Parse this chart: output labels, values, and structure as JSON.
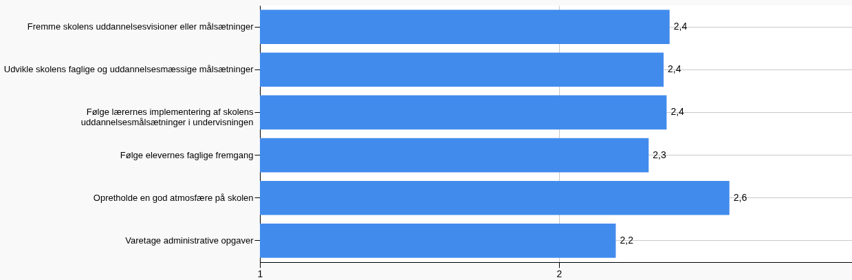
{
  "chart_data": {
    "type": "bar",
    "orientation": "horizontal",
    "categories": [
      "Fremme skolens uddannelsesvisioner eller målsætninger",
      "Udvikle skolens faglige og uddannelsesmæssige målsætninger",
      "Følge lærernes implementering af skolens\nuddannelsesmålsætninger i undervisningen",
      "Følge elevernes faglige fremgang",
      "Opretholde en god atmosfære på skolen",
      "Varetage administrative opgaver"
    ],
    "values": [
      2.37,
      2.35,
      2.36,
      2.3,
      2.57,
      2.19
    ],
    "value_labels": [
      "2,4",
      "2,4",
      "2,4",
      "2,3",
      "2,6",
      "2,2"
    ],
    "color": "#418bed",
    "xlim": [
      1,
      2.98
    ],
    "xticks": [
      1,
      2
    ],
    "grid": true
  }
}
